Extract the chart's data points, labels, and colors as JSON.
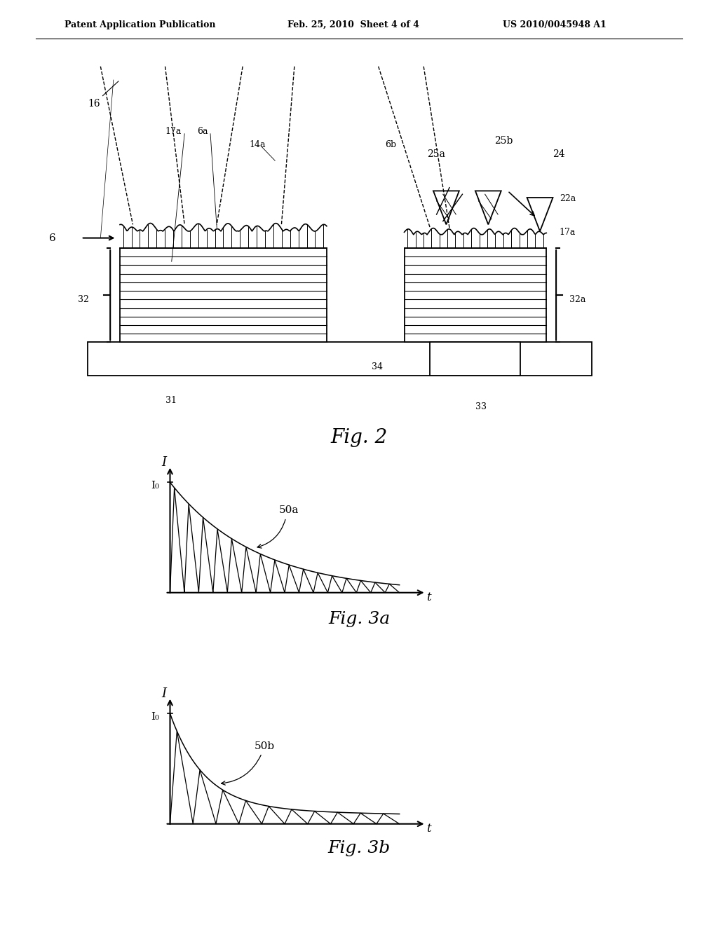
{
  "header_left": "Patent Application Publication",
  "header_mid": "Feb. 25, 2010  Sheet 4 of 4",
  "header_right": "US 2010/0045948 A1",
  "fig2_caption": "Fig. 2",
  "fig3a_caption": "Fig. 3a",
  "fig3b_caption": "Fig. 3b",
  "label_16": "16",
  "label_17a_left": "17a",
  "label_6a": "6a",
  "label_14a": "14a",
  "label_6b": "6b",
  "label_25a": "25a",
  "label_25b": "25b",
  "label_24": "24",
  "label_22a": "22a",
  "label_17a_right": "17a",
  "label_6": "6",
  "label_32_left": "32",
  "label_32a": "32a",
  "label_31": "31",
  "label_34": "34",
  "label_33": "33",
  "label_50a": "50a",
  "label_50b": "50b",
  "bg_color": "#ffffff",
  "line_color": "#000000"
}
